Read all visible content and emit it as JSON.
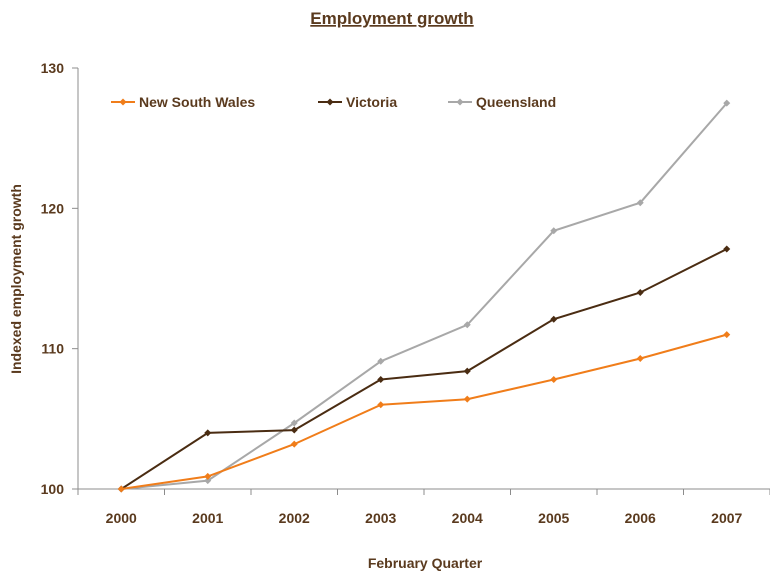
{
  "chart_data": {
    "type": "line",
    "title": "Employment growth",
    "xlabel": "February Quarter",
    "ylabel": "Indexed employment growth",
    "categories": [
      "2000",
      "2001",
      "2002",
      "2003",
      "2004",
      "2005",
      "2006",
      "2007"
    ],
    "ylim": [
      100,
      130
    ],
    "yticks": [
      100,
      110,
      120,
      130
    ],
    "grid": false,
    "legend_position": "top-left",
    "series": [
      {
        "name": "New South Wales",
        "color": "#f07d1a",
        "values": [
          100,
          100.9,
          103.2,
          106.0,
          106.4,
          107.8,
          109.3,
          111.0
        ]
      },
      {
        "name": "Victoria",
        "color": "#4a2c12",
        "values": [
          100,
          104.0,
          104.2,
          107.8,
          108.4,
          112.1,
          114.0,
          117.1
        ]
      },
      {
        "name": "Queensland",
        "color": "#a8a8a8",
        "values": [
          100,
          100.6,
          104.7,
          109.1,
          111.7,
          118.4,
          120.4,
          127.5
        ]
      }
    ]
  }
}
